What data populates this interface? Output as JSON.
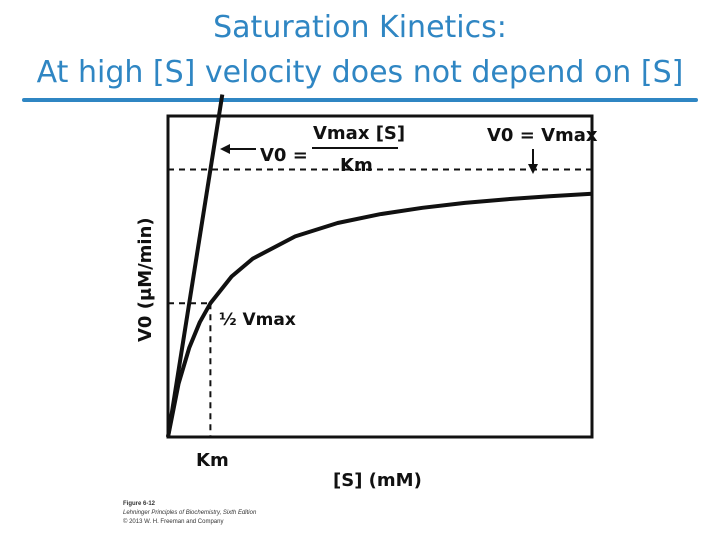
{
  "header": {
    "title_line1": "Saturation Kinetics:",
    "title_line2": "At high [S] velocity does not depend on [S]"
  },
  "chart_data": {
    "type": "line",
    "title": "",
    "xlabel": "[S] (mM)",
    "ylabel": "V0 (μM/min)",
    "xlim": [
      0,
      10
    ],
    "ylim": [
      0,
      1.2
    ],
    "x_ticks": [],
    "y_ticks": [],
    "grid": false,
    "parameters": {
      "Vmax": 1.0,
      "Km": 1.0
    },
    "series": [
      {
        "x": [
          0,
          0.25,
          0.5,
          0.75,
          1,
          1.5,
          2,
          3,
          4,
          5,
          6,
          7,
          8,
          9,
          10
        ],
        "y": [
          0,
          0.2,
          0.333,
          0.429,
          0.5,
          0.6,
          0.667,
          0.75,
          0.8,
          0.833,
          0.857,
          0.875,
          0.889,
          0.9,
          0.909
        ]
      },
      {
        "x": [
          0,
          1.28
        ],
        "y": [
          0,
          1.28
        ]
      }
    ],
    "annotations": {
      "km_label": "Km",
      "half_vmax_label": "½ Vmax",
      "vmax_eq": "V0 = Vmax",
      "mm_lhs": "V0 =",
      "mm_numerator": "Vmax [S]",
      "mm_denominator": "Km"
    }
  },
  "caption": {
    "line1": "Figure 6-12",
    "line2": "Lehninger Principles of Biochemistry, Sixth Edition",
    "line3": "© 2013 W. H. Freeman and Company"
  },
  "colors": {
    "title": "#2f86c3",
    "ink": "#111111"
  }
}
